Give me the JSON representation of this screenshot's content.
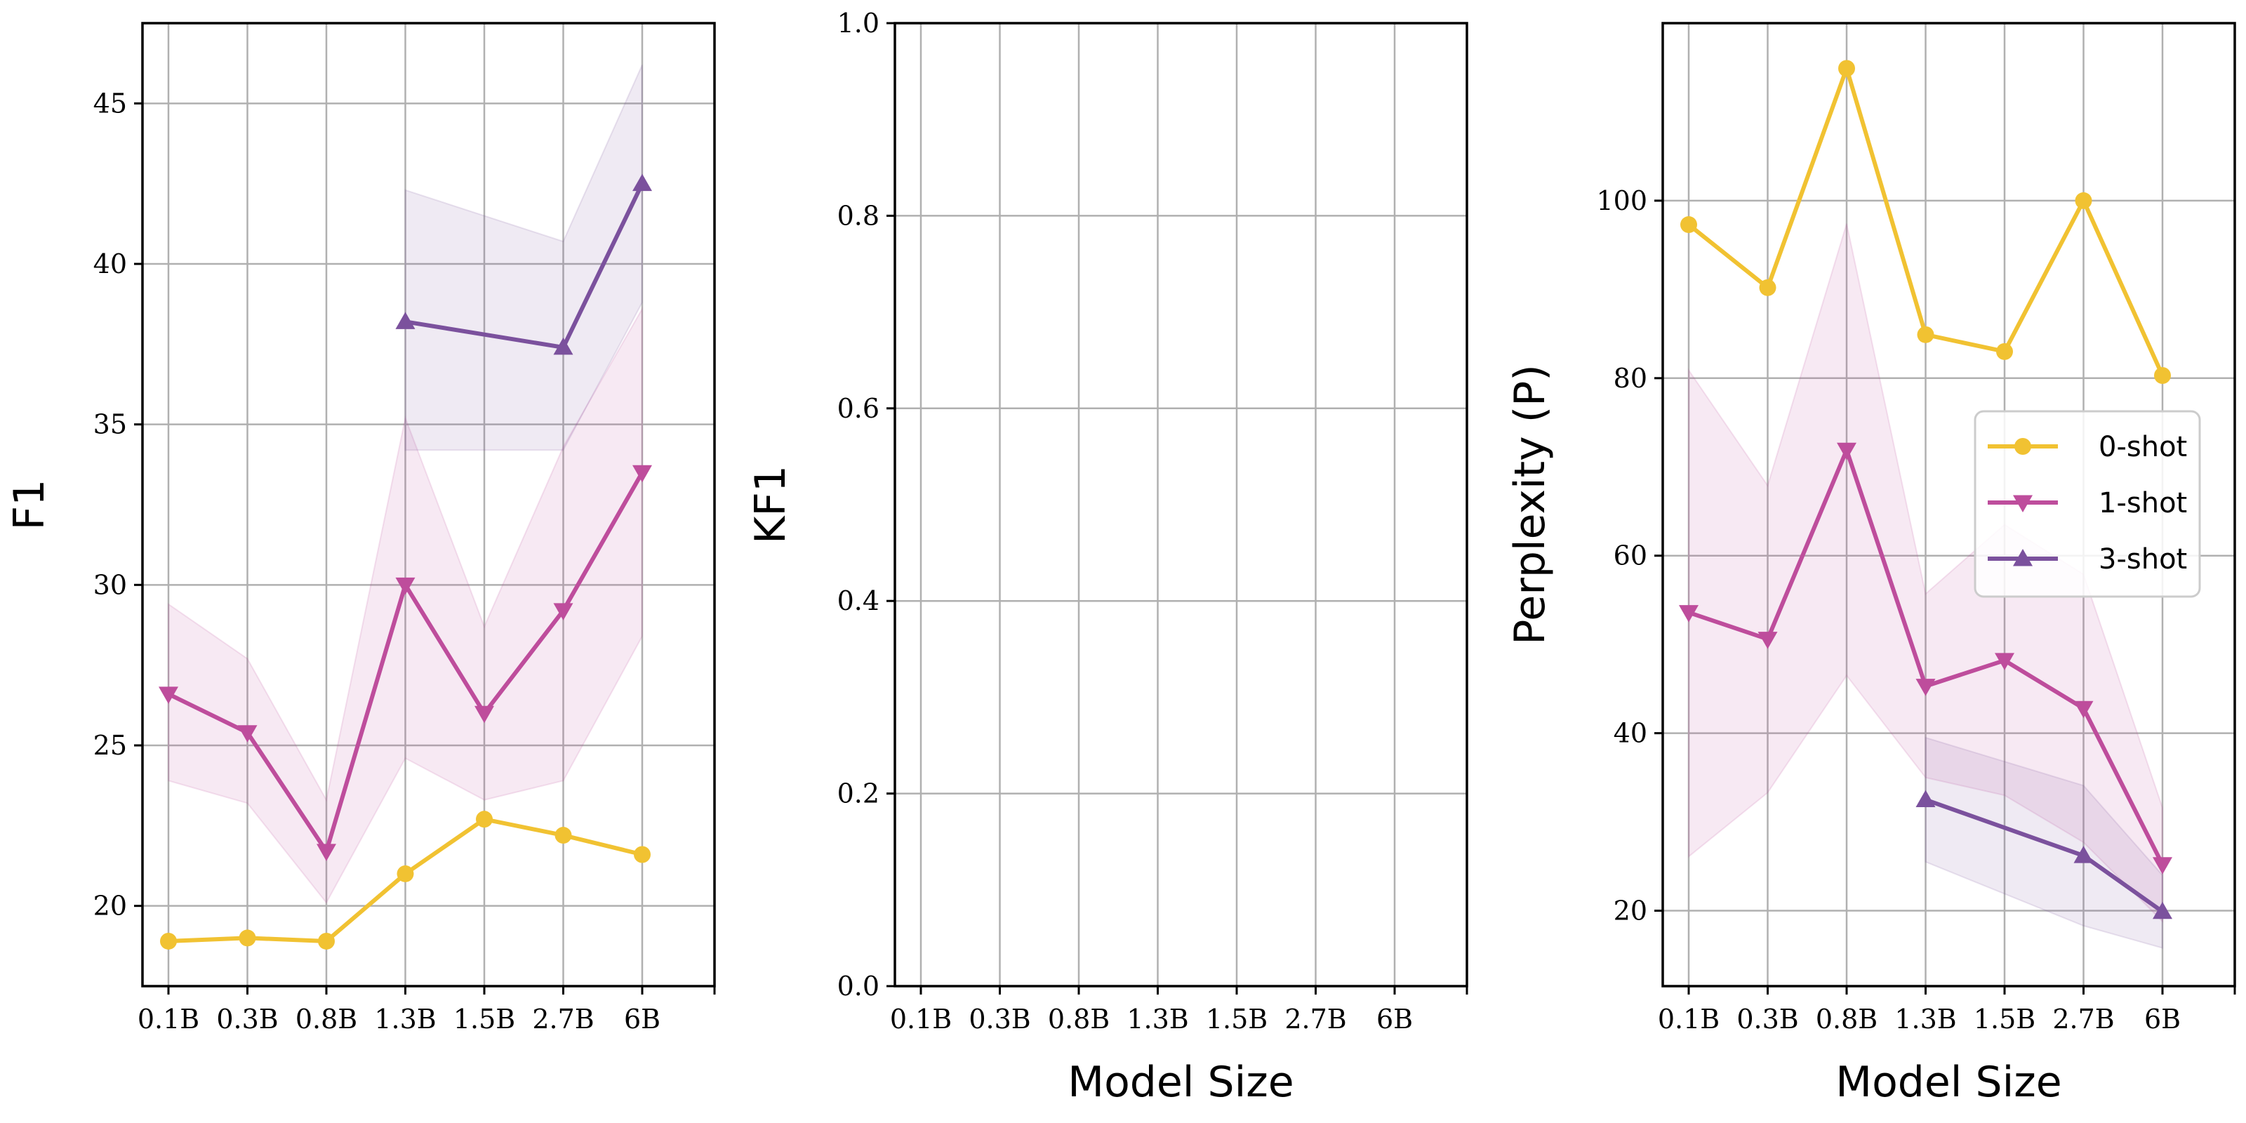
{
  "chart_data": [
    {
      "type": "line",
      "categories": [
        "0.1B",
        "0.3B",
        "0.8B",
        "1.3B",
        "1.5B",
        "2.7B",
        "6B"
      ],
      "xlabel": "",
      "ylabel": "F1",
      "ylim": [
        17.5,
        47.5
      ],
      "yticks": [
        20,
        25,
        30,
        35,
        40,
        45
      ],
      "grid": true,
      "series": [
        {
          "name": "0-shot",
          "color": "#F1C232",
          "marker": "circle",
          "values": [
            18.9,
            19.0,
            18.9,
            21.0,
            22.7,
            22.2,
            21.6
          ],
          "band": null
        },
        {
          "name": "1-shot",
          "color": "#BE4D9C",
          "marker": "triangle-down",
          "values": [
            26.6,
            25.4,
            21.7,
            30.0,
            26.0,
            29.2,
            33.5
          ],
          "band": {
            "low": [
              23.9,
              23.2,
              20.1,
              24.6,
              23.3,
              23.9,
              28.4
            ],
            "high": [
              29.4,
              27.7,
              23.3,
              35.2,
              28.7,
              34.3,
              38.6
            ]
          }
        },
        {
          "name": "3-shot",
          "color": "#7B519D",
          "marker": "triangle-up",
          "values": [
            null,
            null,
            null,
            38.2,
            null,
            37.4,
            42.5
          ],
          "band": {
            "low": [
              null,
              null,
              null,
              34.2,
              null,
              34.2,
              38.8
            ],
            "high": [
              null,
              null,
              null,
              42.3,
              null,
              40.7,
              46.2
            ]
          }
        }
      ]
    },
    {
      "type": "line",
      "categories": [
        "0.1B",
        "0.3B",
        "0.8B",
        "1.3B",
        "1.5B",
        "2.7B",
        "6B"
      ],
      "xlabel": "Model Size",
      "ylabel": "KF1",
      "ylim": [
        0.0,
        1.0
      ],
      "yticks": [
        "0.0",
        "0.2",
        "0.4",
        "0.6",
        "0.8",
        "1.0"
      ],
      "grid": true,
      "series": []
    },
    {
      "type": "line",
      "categories": [
        "0.1B",
        "0.3B",
        "0.8B",
        "1.3B",
        "1.5B",
        "2.7B",
        "6B"
      ],
      "xlabel": "Model Size",
      "ylabel": "Perplexity (P)",
      "ylim": [
        11.5,
        120
      ],
      "yticks": [
        20,
        40,
        60,
        80,
        100
      ],
      "grid": true,
      "legend": {
        "placement": "center-right",
        "entries": [
          "0-shot",
          "1-shot",
          "3-shot"
        ]
      },
      "series": [
        {
          "name": "0-shot",
          "color": "#F1C232",
          "marker": "circle",
          "values": [
            97.3,
            90.2,
            114.9,
            84.9,
            83.0,
            100.0,
            80.3
          ],
          "band": null
        },
        {
          "name": "1-shot",
          "color": "#BE4D9C",
          "marker": "triangle-down",
          "values": [
            53.6,
            50.6,
            71.9,
            45.3,
            48.2,
            42.8,
            25.2
          ],
          "band": {
            "low": [
              26.1,
              33.3,
              46.5,
              35.0,
              33.0,
              27.7,
              18.8
            ],
            "high": [
              80.9,
              67.9,
              97.4,
              55.7,
              63.5,
              57.9,
              31.6
            ]
          }
        },
        {
          "name": "3-shot",
          "color": "#7B519D",
          "marker": "triangle-up",
          "values": [
            null,
            null,
            null,
            32.5,
            null,
            26.2,
            19.9
          ],
          "band": {
            "low": [
              null,
              null,
              null,
              25.5,
              null,
              18.3,
              15.8
            ],
            "high": [
              null,
              null,
              null,
              39.5,
              null,
              34.1,
              24.0
            ]
          }
        }
      ]
    }
  ]
}
